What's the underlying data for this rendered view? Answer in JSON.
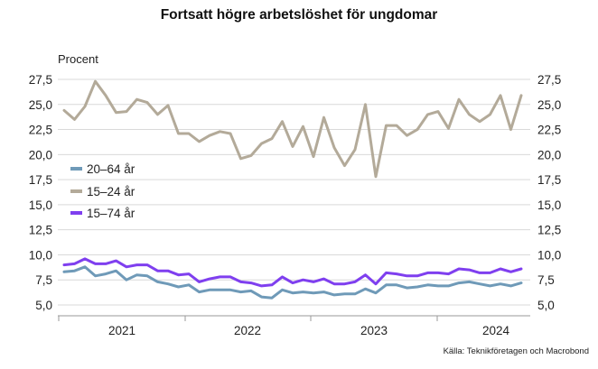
{
  "chart_data": {
    "type": "line",
    "title": "Fortsatt högre arbetslöshet för ungdomar",
    "ylabel": "Procent",
    "source": "Källa: Teknikföretagen och Macrobond",
    "ylim": [
      4.6,
      28.6
    ],
    "y_ticks": [
      "27,5",
      "25,0",
      "22,5",
      "20,0",
      "17,5",
      "15,0",
      "12,5",
      "10,0",
      "7,5",
      "5,0"
    ],
    "y_tick_values": [
      27.5,
      25.0,
      22.5,
      20.0,
      17.5,
      15.0,
      12.5,
      10.0,
      7.5,
      5.0
    ],
    "x_labels": [
      "2021",
      "2022",
      "2023",
      "2024"
    ],
    "x_period": "2020-12 to 2024-07, monthly",
    "grid": true,
    "legend_position": "left-middle",
    "series": [
      {
        "name": "20–64 år",
        "color": "#6f9ab8",
        "values": [
          8.3,
          8.4,
          8.8,
          7.9,
          8.1,
          8.4,
          7.5,
          8.0,
          7.9,
          7.3,
          7.1,
          6.8,
          7.0,
          6.3,
          6.5,
          6.5,
          6.5,
          6.3,
          6.4,
          5.8,
          5.7,
          6.5,
          6.2,
          6.3,
          6.2,
          6.3,
          6.0,
          6.1,
          6.1,
          6.6,
          6.2,
          7.0,
          7.0,
          6.7,
          6.8,
          7.0,
          6.9,
          6.9,
          7.2,
          7.3,
          7.1,
          6.9,
          7.1,
          6.9,
          7.2
        ]
      },
      {
        "name": "15–24 år",
        "color": "#b3aa99",
        "values": [
          24.4,
          23.5,
          24.8,
          27.3,
          25.9,
          24.2,
          24.3,
          25.5,
          25.2,
          24.0,
          24.9,
          22.1,
          22.1,
          21.3,
          21.9,
          22.3,
          22.1,
          19.6,
          19.9,
          21.1,
          21.6,
          23.3,
          20.8,
          22.8,
          19.8,
          23.7,
          20.7,
          18.9,
          20.5,
          25.0,
          17.8,
          22.9,
          22.9,
          21.9,
          22.5,
          24.0,
          24.3,
          22.6,
          25.5,
          24.0,
          23.3,
          24.0,
          25.9,
          22.5,
          25.9
        ]
      },
      {
        "name": "15–74 år",
        "color": "#7f3fef",
        "values": [
          9.0,
          9.1,
          9.6,
          9.1,
          9.1,
          9.4,
          8.8,
          9.0,
          9.0,
          8.4,
          8.4,
          8.0,
          8.1,
          7.3,
          7.6,
          7.8,
          7.8,
          7.3,
          7.2,
          6.9,
          7.0,
          7.8,
          7.2,
          7.5,
          7.3,
          7.6,
          7.1,
          7.1,
          7.3,
          8.0,
          7.1,
          8.2,
          8.1,
          7.9,
          7.9,
          8.2,
          8.2,
          8.1,
          8.6,
          8.5,
          8.2,
          8.2,
          8.6,
          8.3,
          8.6
        ]
      }
    ]
  }
}
